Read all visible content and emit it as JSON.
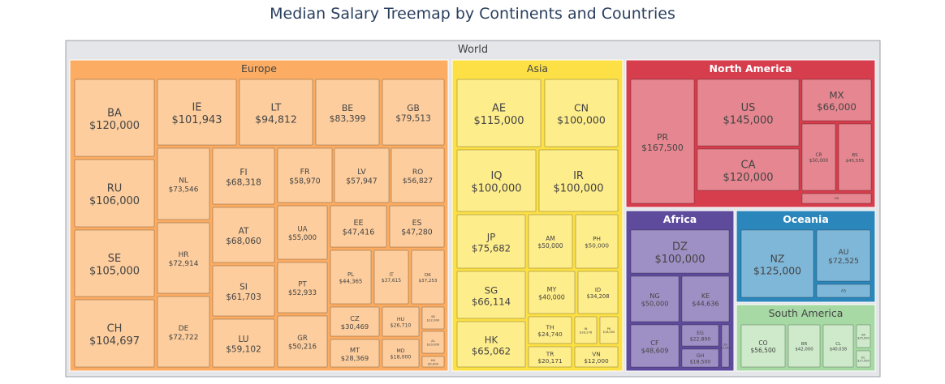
{
  "chart_data": {
    "type": "treemap",
    "title": "Median Salary Treemap by Continents and Countries",
    "root_label": "World",
    "colors": {
      "root": "#e5e6ea",
      "Europe": {
        "header": "#fcad63",
        "leaf": "#fdcd9d",
        "text": "#444444"
      },
      "Asia": {
        "header": "#fce046",
        "leaf": "#feed8b",
        "text": "#444444"
      },
      "North America": {
        "header": "#d63d4d",
        "leaf": "#e58690",
        "text": "#ffffff",
        "leafText": "#444444"
      },
      "Africa": {
        "header": "#5e4b9b",
        "leaf": "#9e90c4",
        "text": "#ffffff",
        "leafText": "#444444"
      },
      "Oceania": {
        "header": "#2b87bb",
        "leaf": "#7fb7d8",
        "text": "#ffffff",
        "leafText": "#444444"
      },
      "South America": {
        "header": "#a7d9a4",
        "leaf": "#cfeacb",
        "text": "#444444"
      }
    },
    "continents": [
      {
        "name": "Europe",
        "countries": [
          {
            "code": "BA",
            "value": "$120,000"
          },
          {
            "code": "RU",
            "value": "$106,000"
          },
          {
            "code": "SE",
            "value": "$105,000"
          },
          {
            "code": "CH",
            "value": "$104,697"
          },
          {
            "code": "IE",
            "value": "$101,943"
          },
          {
            "code": "LT",
            "value": "$94,812"
          },
          {
            "code": "BE",
            "value": "$83,399"
          },
          {
            "code": "GB",
            "value": "$79,513"
          },
          {
            "code": "NL",
            "value": "$73,546"
          },
          {
            "code": "HR",
            "value": "$72,914"
          },
          {
            "code": "DE",
            "value": "$72,722"
          },
          {
            "code": "FI",
            "value": "$68,318"
          },
          {
            "code": "AT",
            "value": "$68,060"
          },
          {
            "code": "SI",
            "value": "$61,703"
          },
          {
            "code": "LU",
            "value": "$59,102"
          },
          {
            "code": "FR",
            "value": "$58,970"
          },
          {
            "code": "LV",
            "value": "$57,947"
          },
          {
            "code": "RO",
            "value": "$56,827"
          },
          {
            "code": "UA",
            "value": "$55,000"
          },
          {
            "code": "PT",
            "value": "$52,933"
          },
          {
            "code": "GR",
            "value": "$50,216"
          },
          {
            "code": "EE",
            "value": "$47,416"
          },
          {
            "code": "ES",
            "value": "$47,280"
          },
          {
            "code": "PL",
            "value": "$44,365"
          },
          {
            "code": "IT",
            "value": "$37,615"
          },
          {
            "code": "DK",
            "value": "$37,253"
          },
          {
            "code": "CZ",
            "value": "$30,469"
          },
          {
            "code": "HU",
            "value": "$26,710"
          },
          {
            "code": "MT",
            "value": "$28,369"
          },
          {
            "code": "MD",
            "value": "$18,000"
          },
          {
            "code": "SK",
            "value": "$12,000"
          },
          {
            "code": "AL",
            "value": "$10,000"
          },
          {
            "code": "HU2",
            "value": "$5,000"
          }
        ]
      },
      {
        "name": "Asia",
        "countries": [
          {
            "code": "AE",
            "value": "$115,000"
          },
          {
            "code": "CN",
            "value": "$100,000"
          },
          {
            "code": "IQ",
            "value": "$100,000"
          },
          {
            "code": "IR",
            "value": "$100,000"
          },
          {
            "code": "JP",
            "value": "$75,682"
          },
          {
            "code": "AM",
            "value": "$50,000"
          },
          {
            "code": "PH",
            "value": "$50,000"
          },
          {
            "code": "SG",
            "value": "$66,114"
          },
          {
            "code": "MY",
            "value": "$40,000"
          },
          {
            "code": "ID",
            "value": "$34,208"
          },
          {
            "code": "HK",
            "value": "$65,062"
          },
          {
            "code": "TH",
            "value": "$24,740"
          },
          {
            "code": "IN",
            "value": "$18,276"
          },
          {
            "code": "PK",
            "value": "$16,000"
          },
          {
            "code": "TR",
            "value": "$20,171"
          },
          {
            "code": "VN",
            "value": "$12,000"
          }
        ]
      },
      {
        "name": "North America",
        "countries": [
          {
            "code": "PR",
            "value": "$167,500"
          },
          {
            "code": "US",
            "value": "$145,000"
          },
          {
            "code": "MX",
            "value": "$66,000"
          },
          {
            "code": "CA",
            "value": "$120,000"
          },
          {
            "code": "CR",
            "value": "$50,000"
          },
          {
            "code": "BS",
            "value": "$45,555"
          },
          {
            "code": "HN",
            "value": "$20,000"
          }
        ]
      },
      {
        "name": "Africa",
        "countries": [
          {
            "code": "DZ",
            "value": "$100,000"
          },
          {
            "code": "NG",
            "value": "$50,000"
          },
          {
            "code": "KE",
            "value": "$44,636"
          },
          {
            "code": "CF",
            "value": "$48,609"
          },
          {
            "code": "EG",
            "value": "$22,800"
          },
          {
            "code": "GH",
            "value": "$18,500"
          },
          {
            "code": "ZA",
            "value": "$5,000"
          }
        ]
      },
      {
        "name": "Oceania",
        "countries": [
          {
            "code": "NZ",
            "value": "$125,000"
          },
          {
            "code": "AU",
            "value": "$72,525"
          },
          {
            "code": "AS",
            "value": "$20,000"
          }
        ]
      },
      {
        "name": "South America",
        "countries": [
          {
            "code": "CO",
            "value": "$56,500"
          },
          {
            "code": "BR",
            "value": "$42,000"
          },
          {
            "code": "CL",
            "value": "$40,038"
          },
          {
            "code": "AR",
            "value": "$25,000"
          },
          {
            "code": "EC",
            "value": "$17,500"
          }
        ]
      }
    ]
  }
}
